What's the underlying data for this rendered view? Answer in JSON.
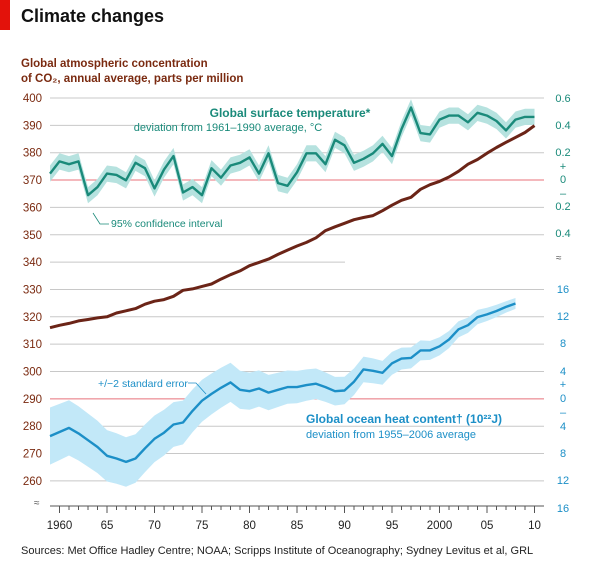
{
  "header": {
    "title": "Climate changes",
    "subtitle_line1": "Global atmospheric concentration",
    "subtitle_line2": "of CO₂, annual average, parts per million"
  },
  "source": "Sources: Met Office Hadley Centre; NOAA; Scripps Institute of Oceanography; Sydney Levitus et al, GRL",
  "annotations": {
    "temp_title": "Global surface temperature*",
    "temp_sub": "deviation from 1961–1990 average, °C",
    "temp_ci": "95% confidence interval",
    "ocean_title": "Global ocean heat content† (10²²J)",
    "ocean_sub": "deviation from 1955–2006 average",
    "ocean_err": "+/−2 standard error"
  },
  "colors": {
    "co2": "#6b2417",
    "temp": "#1a8a7a",
    "temp_band": "#b6e2df",
    "ocean": "#1c8fc7",
    "ocean_band": "#c2e8f8",
    "zero_line": "#e8707a",
    "axis_co2": "#7a2a10"
  },
  "chart_data": {
    "type": "line",
    "x_ticks": [
      "1960",
      "65",
      "70",
      "75",
      "80",
      "85",
      "90",
      "95",
      "2000",
      "05",
      "10"
    ],
    "x_tick_years": [
      1960,
      1965,
      1970,
      1975,
      1980,
      1985,
      1990,
      1995,
      2000,
      2005,
      2010
    ],
    "x_range": [
      1959,
      2011
    ],
    "left_axis": {
      "range": [
        255,
        400
      ],
      "ticks": [
        "400",
        "390",
        "380",
        "370",
        "360",
        "350",
        "340",
        "330",
        "320",
        "310",
        "300",
        "290",
        "280",
        "270",
        "260"
      ]
    },
    "right_axis_temp": {
      "ticks": [
        "0.6",
        "0.4",
        "0.2",
        "+",
        "0",
        "–",
        "0.2",
        "0.4"
      ]
    },
    "right_axis_ocean": {
      "ticks": [
        "16",
        "12",
        "8",
        "4",
        "+",
        "0",
        "–",
        "4",
        "8",
        "12",
        "16"
      ]
    },
    "series": [
      {
        "name": "Global atmospheric concentration of CO₂",
        "x": [
          1959,
          1960,
          1961,
          1962,
          1963,
          1964,
          1965,
          1966,
          1967,
          1968,
          1969,
          1970,
          1971,
          1972,
          1973,
          1974,
          1975,
          1976,
          1977,
          1978,
          1979,
          1980,
          1981,
          1982,
          1983,
          1984,
          1985,
          1986,
          1987,
          1988,
          1989,
          1990,
          1991,
          1992,
          1993,
          1994,
          1995,
          1996,
          1997,
          1998,
          1999,
          2000,
          2001,
          2002,
          2003,
          2004,
          2005,
          2006,
          2007,
          2008,
          2009,
          2010
        ],
        "values": [
          316.0,
          316.9,
          317.6,
          318.5,
          319.0,
          319.6,
          320.0,
          321.4,
          322.2,
          323.0,
          324.6,
          325.7,
          326.3,
          327.5,
          329.7,
          330.2,
          331.1,
          332.0,
          333.8,
          335.4,
          336.8,
          338.7,
          339.9,
          341.1,
          342.8,
          344.4,
          345.9,
          347.2,
          348.9,
          351.5,
          352.9,
          354.2,
          355.5,
          356.3,
          357.0,
          358.8,
          360.8,
          362.6,
          363.7,
          366.6,
          368.3,
          369.5,
          371.1,
          373.2,
          375.8,
          377.5,
          379.8,
          381.9,
          383.8,
          385.6,
          387.4,
          389.9
        ]
      },
      {
        "name": "Global surface temperature",
        "x": [
          1959,
          1960,
          1961,
          1962,
          1963,
          1964,
          1965,
          1966,
          1967,
          1968,
          1969,
          1970,
          1971,
          1972,
          1973,
          1974,
          1975,
          1976,
          1977,
          1978,
          1979,
          1980,
          1981,
          1982,
          1983,
          1984,
          1985,
          1986,
          1987,
          1988,
          1989,
          1990,
          1991,
          1992,
          1993,
          1994,
          1995,
          1996,
          1997,
          1998,
          1999,
          2000,
          2001,
          2002,
          2003,
          2004,
          2005,
          2006,
          2007,
          2008,
          2009,
          2010
        ],
        "values": [
          0.04,
          0.13,
          0.11,
          0.13,
          -0.12,
          -0.06,
          0.04,
          0.03,
          -0.01,
          0.12,
          0.08,
          -0.07,
          0.07,
          0.17,
          -0.1,
          -0.06,
          -0.12,
          0.08,
          0.01,
          0.1,
          0.12,
          0.16,
          0.04,
          0.19,
          -0.03,
          -0.05,
          0.05,
          0.19,
          0.19,
          0.11,
          0.29,
          0.25,
          0.12,
          0.15,
          0.19,
          0.26,
          0.17,
          0.37,
          0.53,
          0.34,
          0.33,
          0.44,
          0.47,
          0.47,
          0.42,
          0.49,
          0.47,
          0.43,
          0.36,
          0.44,
          0.46,
          0.46
        ]
      },
      {
        "name": "Global ocean heat content",
        "x": [
          1959,
          1960,
          1961,
          1962,
          1963,
          1964,
          1965,
          1966,
          1967,
          1968,
          1969,
          1970,
          1971,
          1972,
          1973,
          1974,
          1975,
          1976,
          1977,
          1978,
          1979,
          1980,
          1981,
          1982,
          1983,
          1984,
          1985,
          1986,
          1987,
          1988,
          1989,
          1990,
          1991,
          1992,
          1993,
          1994,
          1995,
          1996,
          1997,
          1998,
          1999,
          2000,
          2001,
          2002,
          2003,
          2004,
          2005,
          2006,
          2007,
          2008
        ],
        "values": [
          -5.6,
          -5.0,
          -4.4,
          -5.2,
          -6.2,
          -7.2,
          -8.5,
          -8.9,
          -9.4,
          -8.9,
          -7.4,
          -6.0,
          -5.1,
          -3.9,
          -3.6,
          -1.9,
          -0.4,
          0.6,
          1.5,
          2.3,
          1.2,
          1.0,
          1.4,
          0.8,
          1.2,
          1.6,
          1.6,
          1.9,
          2.1,
          1.6,
          1.0,
          1.1,
          2.4,
          4.2,
          4.0,
          3.7,
          5.1,
          5.8,
          5.9,
          7.0,
          7.0,
          7.6,
          8.6,
          10.1,
          10.7,
          11.9,
          12.3,
          12.8,
          13.4,
          13.9
        ]
      }
    ]
  }
}
